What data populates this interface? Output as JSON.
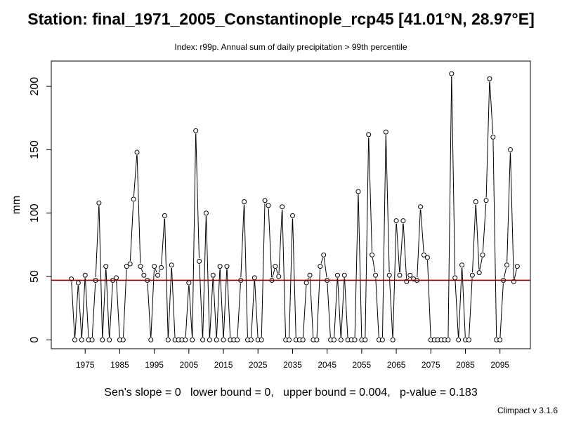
{
  "header": {
    "title": "Station: final_1971_2005_Constantinople_rcp45 [41.01°N, 28.97°E]",
    "subtitle": "Index: r99p. Annual sum of daily precipitation > 99th percentile"
  },
  "footer": {
    "stats": "Sen's slope = 0   lower bound = 0,   upper bound = 0.004,   p-value = 0.183",
    "credit": "Climpact v 3.1.6"
  },
  "colors": {
    "series_line": "#000000",
    "reference_line": "#8b0000",
    "frame": "#000000"
  },
  "chart_data": {
    "type": "line",
    "ylabel": "mm",
    "xlim": [
      1965.2,
      2103.8
    ],
    "ylim": [
      -7,
      220
    ],
    "x_ticks": [
      1975,
      1985,
      1995,
      2005,
      2015,
      2025,
      2035,
      2045,
      2055,
      2065,
      2075,
      2085,
      2095
    ],
    "y_ticks": [
      0,
      50,
      100,
      150,
      200
    ],
    "reference_line_value": 47,
    "x_start": 1971,
    "x": [
      1971,
      1972,
      1973,
      1974,
      1975,
      1976,
      1977,
      1978,
      1979,
      1980,
      1981,
      1982,
      1983,
      1984,
      1985,
      1986,
      1987,
      1988,
      1989,
      1990,
      1991,
      1992,
      1993,
      1994,
      1995,
      1996,
      1997,
      1998,
      1999,
      2000,
      2001,
      2002,
      2003,
      2004,
      2005,
      2006,
      2007,
      2008,
      2009,
      2010,
      2011,
      2012,
      2013,
      2014,
      2015,
      2016,
      2017,
      2018,
      2019,
      2020,
      2021,
      2022,
      2023,
      2024,
      2025,
      2026,
      2027,
      2028,
      2029,
      2030,
      2031,
      2032,
      2033,
      2034,
      2035,
      2036,
      2037,
      2038,
      2039,
      2040,
      2041,
      2042,
      2043,
      2044,
      2045,
      2046,
      2047,
      2048,
      2049,
      2050,
      2051,
      2052,
      2053,
      2054,
      2055,
      2056,
      2057,
      2058,
      2059,
      2060,
      2061,
      2062,
      2063,
      2064,
      2065,
      2066,
      2067,
      2068,
      2069,
      2070,
      2071,
      2072,
      2073,
      2074,
      2075,
      2076,
      2077,
      2078,
      2079,
      2080,
      2081,
      2082,
      2083,
      2084,
      2085,
      2086,
      2087,
      2088,
      2089,
      2090,
      2091,
      2092,
      2093,
      2094,
      2095,
      2096,
      2097,
      2098,
      2099,
      2100
    ],
    "values": [
      48,
      0,
      45,
      0,
      51,
      0,
      0,
      47,
      108,
      0,
      58,
      0,
      47,
      49,
      0,
      0,
      58,
      60,
      111,
      148,
      58,
      51,
      47,
      0,
      58,
      51,
      57,
      98,
      0,
      59,
      0,
      0,
      0,
      0,
      45,
      0,
      165,
      62,
      0,
      100,
      0,
      51,
      0,
      58,
      0,
      58,
      0,
      0,
      0,
      47,
      109,
      0,
      0,
      49,
      0,
      0,
      110,
      106,
      47,
      58,
      50,
      105,
      0,
      0,
      98,
      0,
      0,
      0,
      45,
      51,
      0,
      0,
      58,
      67,
      47,
      0,
      0,
      51,
      0,
      51,
      0,
      0,
      0,
      117,
      0,
      0,
      162,
      67,
      51,
      0,
      0,
      164,
      51,
      0,
      94,
      51,
      94,
      46,
      51,
      48,
      47,
      105,
      67,
      65,
      0,
      0,
      0,
      0,
      0,
      0,
      210,
      49,
      0,
      59,
      0,
      0,
      51,
      109,
      53,
      67,
      110,
      206,
      160,
      0,
      0,
      47,
      59,
      150,
      46,
      58
    ]
  }
}
